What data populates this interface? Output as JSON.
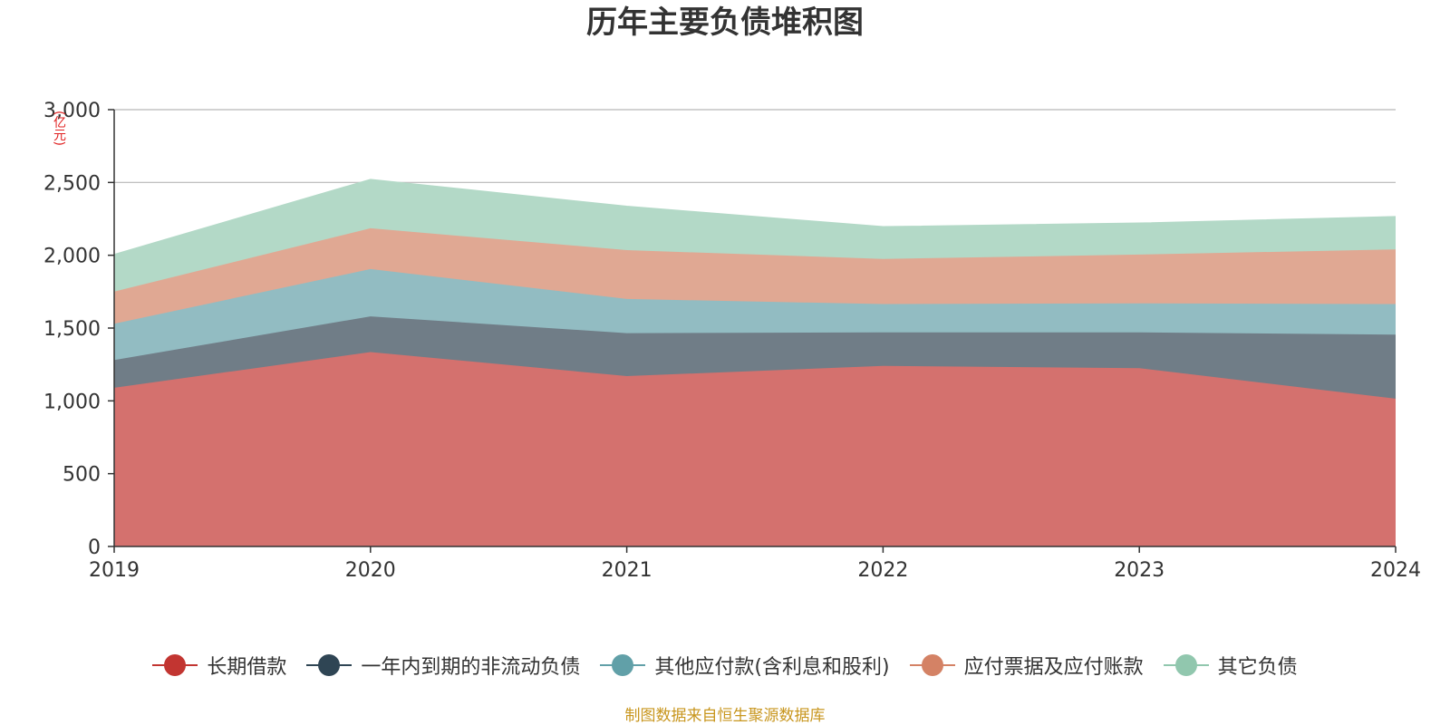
{
  "chart_data": {
    "type": "area",
    "stacked": true,
    "title": "历年主要负债堆积图",
    "yunit": "(亿元)",
    "x": [
      "2019",
      "2020",
      "2021",
      "2022",
      "2023",
      "2024"
    ],
    "ylim": [
      0,
      3000
    ],
    "yticks": [
      0,
      500,
      1000,
      1500,
      2000,
      2500,
      3000
    ],
    "ytick_labels": [
      "0",
      "500",
      "1,000",
      "1,500",
      "2,000",
      "2,500",
      "3,000"
    ],
    "grid": true,
    "legend_position": "bottom",
    "series": [
      {
        "name": "长期借款",
        "color": "#c23531",
        "fill": "#d4716e",
        "values": [
          1090,
          1335,
          1170,
          1240,
          1225,
          1015
        ]
      },
      {
        "name": "一年内到期的非流动负债",
        "color": "#2f4554",
        "fill": "#707d87",
        "values": [
          190,
          245,
          295,
          230,
          245,
          440
        ]
      },
      {
        "name": "其他应付款(含利息和股利)",
        "color": "#61a0a8",
        "fill": "#92bcc2",
        "values": [
          250,
          325,
          235,
          195,
          200,
          210
        ]
      },
      {
        "name": "应付票据及应付账款",
        "color": "#d48265",
        "fill": "#e0a893",
        "values": [
          220,
          280,
          335,
          310,
          335,
          375
        ]
      },
      {
        "name": "其它负债",
        "color": "#91c7ae",
        "fill": "#b3d9c7",
        "values": [
          255,
          335,
          300,
          220,
          215,
          225
        ]
      }
    ]
  },
  "source_note": "制图数据来自恒生聚源数据库"
}
